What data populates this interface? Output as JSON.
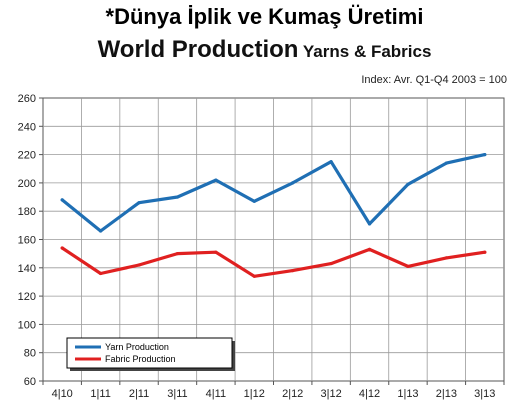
{
  "heading": "*Dünya İplik ve Kumaş Üretimi",
  "chart_title_main": "World Production",
  "chart_title_sub": "Yarns & Fabrics",
  "index_note": "Index: Avr. Q1-Q4 2003 = 100",
  "chart_data": {
    "type": "line",
    "categories": [
      "4|10",
      "1|11",
      "2|11",
      "3|11",
      "4|11",
      "1|12",
      "2|12",
      "3|12",
      "4|12",
      "1|13",
      "2|13",
      "3|13"
    ],
    "series": [
      {
        "name": "Yarn Production",
        "color": "#1f6fb4",
        "values": [
          188,
          166,
          186,
          190,
          202,
          187,
          200,
          215,
          171,
          199,
          214,
          220
        ]
      },
      {
        "name": "Fabric Production",
        "color": "#e02020",
        "values": [
          154,
          136,
          142,
          150,
          151,
          134,
          138,
          143,
          153,
          141,
          147,
          151
        ]
      }
    ],
    "ylim": [
      60,
      260
    ],
    "yticks": [
      60,
      80,
      100,
      120,
      140,
      160,
      180,
      200,
      220,
      240,
      260
    ],
    "grid": true,
    "legend": "bottom-left"
  }
}
